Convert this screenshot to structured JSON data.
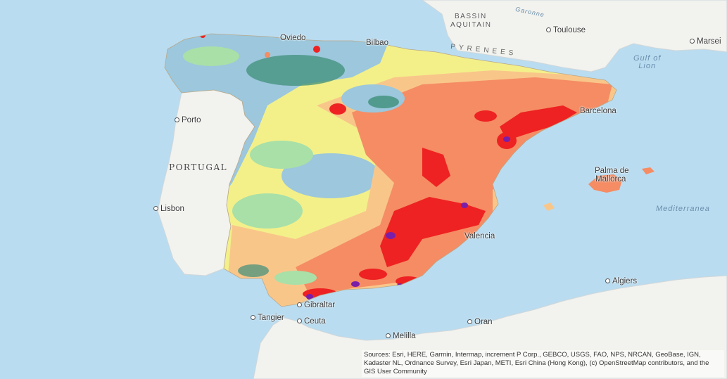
{
  "map": {
    "labels": {
      "bassin": "BASSIN",
      "aquitain": "AQUITAIN",
      "garonne": "Garonne",
      "toulouse": "Toulouse",
      "marseille": "Marsei",
      "pyrenees": "PYRENEES",
      "gulf_of_lion": "Gulf of\nLion",
      "oviedo": "Oviedo",
      "bilbao": "Bilbao",
      "porto": "Porto",
      "portugal": "PORTUGAL",
      "lisbon": "Lisbon",
      "barcelona": "Barcelona",
      "palma": "Palma de",
      "mallorca": "Mallorca",
      "mediterranean": "Mediterranea",
      "valencia": "Valencia",
      "algiers": "Algiers",
      "gibraltar": "Gibraltar",
      "tangier": "Tangier",
      "ceuta": "Ceuta",
      "melilla": "Melilla",
      "oran": "Oran"
    },
    "attribution": "Sources: Esri, HERE, Garmin, Intermap, increment P Corp., GEBCO, USGS, FAO, NPS, NRCAN, GeoBase, IGN, Kadaster NL, Ordnance Survey, Esri Japan, METI, Esri China (Hong Kong), (c) OpenStreetMap contributors, and the GIS User Community",
    "colors": {
      "sea": "#b9dcf0",
      "land": "#f2f2ee",
      "class_1": "#3f8f7a",
      "class_2": "#9cc7dc",
      "class_3": "#a8e0a8",
      "class_4": "#f3f08a",
      "class_5": "#f9c68a",
      "class_6": "#f58c64",
      "class_7": "#ee2222",
      "class_8": "#7a1fa8"
    }
  }
}
